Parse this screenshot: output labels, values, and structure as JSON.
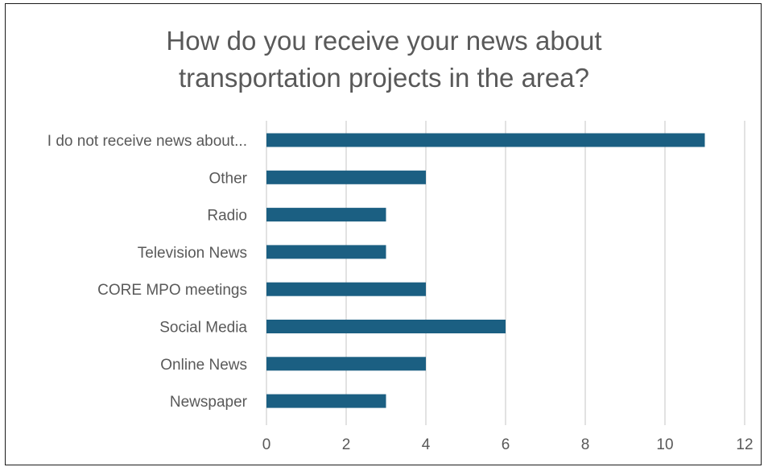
{
  "chart_data": {
    "type": "bar",
    "orientation": "horizontal",
    "title_lines": [
      "How do you receive your news about",
      "transportation projects in the area?"
    ],
    "categories": [
      "I do not receive news about...",
      "Other",
      "Radio",
      "Television News",
      "CORE MPO meetings",
      "Social Media",
      "Online News",
      "Newspaper"
    ],
    "values": [
      11,
      4,
      3,
      3,
      4,
      6,
      4,
      3
    ],
    "xlim": [
      0,
      12
    ],
    "xticks": [
      "0",
      "2",
      "4",
      "6",
      "8",
      "10",
      "12"
    ],
    "grid": "vertical",
    "legend": "none",
    "bar_color": "#1b5f82",
    "grid_color": "#d9d9d9"
  }
}
